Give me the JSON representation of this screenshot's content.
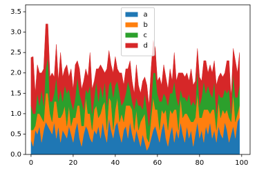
{
  "chart_data": {
    "type": "area",
    "stacked": true,
    "x": [
      0,
      1,
      2,
      3,
      4,
      5,
      6,
      7,
      8,
      9,
      10,
      11,
      12,
      13,
      14,
      15,
      16,
      17,
      18,
      19,
      20,
      21,
      22,
      23,
      24,
      25,
      26,
      27,
      28,
      29,
      30,
      31,
      32,
      33,
      34,
      35,
      36,
      37,
      38,
      39,
      40,
      41,
      42,
      43,
      44,
      45,
      46,
      47,
      48,
      49,
      50,
      51,
      52,
      53,
      54,
      55,
      56,
      57,
      58,
      59,
      60,
      61,
      62,
      63,
      64,
      65,
      66,
      67,
      68,
      69,
      70,
      71,
      72,
      73,
      74,
      75,
      76,
      77,
      78,
      79,
      80,
      81,
      82,
      83,
      84,
      85,
      86,
      87,
      88,
      89,
      90,
      91,
      92,
      93,
      94,
      95,
      96,
      97,
      98,
      99
    ],
    "series": [
      {
        "name": "a",
        "color": "#1f77b4",
        "values": [
          0.35,
          0.2,
          0.6,
          0.5,
          0.7,
          0.3,
          0.6,
          0.8,
          0.7,
          0.6,
          0.5,
          0.8,
          0.4,
          0.7,
          0.3,
          0.6,
          0.5,
          0.4,
          0.7,
          0.5,
          0.3,
          0.6,
          0.8,
          0.4,
          0.2,
          0.5,
          0.7,
          0.6,
          0.4,
          0.3,
          0.6,
          0.5,
          0.7,
          0.4,
          0.8,
          0.5,
          0.3,
          0.9,
          0.6,
          0.4,
          0.7,
          0.8,
          0.5,
          0.3,
          0.6,
          0.7,
          0.4,
          0.8,
          0.5,
          0.3,
          0.6,
          0.4,
          0.2,
          0.5,
          0.3,
          0.1,
          0.2,
          0.4,
          0.6,
          0.7,
          0.5,
          0.3,
          0.6,
          0.8,
          0.4,
          0.2,
          0.5,
          0.7,
          0.3,
          0.6,
          0.4,
          0.8,
          0.5,
          0.3,
          0.7,
          0.4,
          0.6,
          0.2,
          0.5,
          0.8,
          0.4,
          0.6,
          0.3,
          0.7,
          0.5,
          0.8,
          0.4,
          0.6,
          0.3,
          0.7,
          0.5,
          0.4,
          0.8,
          0.6,
          0.3,
          0.5,
          0.7,
          0.4,
          0.8,
          0.9
        ]
      },
      {
        "name": "b",
        "color": "#ff7f0e",
        "values": [
          0.25,
          0.4,
          0.1,
          0.5,
          0.3,
          0.6,
          0.2,
          0.7,
          0.8,
          0.4,
          0.3,
          0.5,
          0.9,
          0.2,
          0.6,
          0.4,
          0.7,
          0.3,
          0.5,
          0.2,
          0.6,
          0.3,
          0.4,
          0.8,
          0.5,
          0.2,
          0.7,
          0.4,
          0.6,
          0.3,
          0.5,
          0.7,
          0.2,
          0.6,
          0.4,
          0.8,
          0.3,
          0.5,
          0.7,
          0.2,
          0.4,
          0.6,
          0.3,
          0.7,
          0.2,
          0.5,
          0.8,
          0.4,
          0.6,
          0.3,
          0.5,
          0.2,
          0.6,
          0.4,
          0.7,
          0.3,
          0.1,
          0.5,
          0.8,
          0.4,
          0.6,
          0.3,
          0.5,
          0.2,
          0.7,
          0.4,
          0.6,
          0.3,
          0.8,
          0.5,
          0.2,
          0.6,
          0.4,
          0.7,
          0.3,
          0.5,
          0.2,
          0.6,
          0.4,
          0.7,
          0.5,
          0.3,
          0.8,
          0.4,
          0.6,
          0.2,
          0.7,
          0.5,
          0.3,
          0.6,
          0.4,
          0.7,
          0.2,
          0.5,
          0.6,
          0.3,
          0.8,
          0.4,
          0.2,
          0.3
        ]
      },
      {
        "name": "c",
        "color": "#2ca02c",
        "values": [
          0.6,
          0.4,
          0.3,
          0.5,
          0.2,
          0.7,
          0.4,
          0.6,
          0.9,
          0.3,
          0.5,
          0.2,
          0.6,
          0.4,
          0.7,
          0.3,
          0.5,
          0.8,
          0.4,
          0.6,
          0.2,
          0.5,
          0.7,
          0.3,
          0.6,
          0.4,
          0.2,
          0.5,
          0.7,
          0.4,
          0.3,
          0.6,
          0.4,
          0.7,
          0.2,
          0.5,
          0.6,
          0.3,
          0.5,
          0.8,
          0.6,
          0.4,
          0.7,
          0.2,
          0.5,
          0.3,
          0.6,
          0.4,
          0.2,
          0.5,
          0.3,
          0.6,
          0.4,
          0.2,
          0.5,
          0.7,
          0.4,
          0.3,
          0.6,
          0.9,
          0.4,
          0.7,
          0.2,
          0.5,
          0.3,
          0.6,
          0.4,
          0.5,
          0.7,
          0.3,
          0.6,
          0.2,
          0.5,
          0.4,
          0.3,
          0.6,
          0.4,
          0.5,
          0.3,
          0.6,
          0.3,
          0.5,
          0.7,
          0.4,
          0.6,
          0.5,
          0.3,
          0.7,
          0.4,
          0.2,
          0.5,
          0.3,
          0.6,
          0.4,
          0.7,
          0.2,
          0.5,
          0.6,
          0.4,
          0.5
        ]
      },
      {
        "name": "d",
        "color": "#d62728",
        "values": [
          1.18,
          1.4,
          0.5,
          0.7,
          0.8,
          0.4,
          0.9,
          1.1,
          0.8,
          0.6,
          0.7,
          0.4,
          0.8,
          0.5,
          0.9,
          0.6,
          0.4,
          0.7,
          0.3,
          0.8,
          0.5,
          0.8,
          0.4,
          0.6,
          0.3,
          0.7,
          0.5,
          0.4,
          0.8,
          0.6,
          0.4,
          0.3,
          0.8,
          0.5,
          0.7,
          0.2,
          0.9,
          0.85,
          0.4,
          0.6,
          0.7,
          0.3,
          0.5,
          0.8,
          0.4,
          0.6,
          0.3,
          0.7,
          0.5,
          0.4,
          0.8,
          0.5,
          0.3,
          0.7,
          0.4,
          0.6,
          0.5,
          0.9,
          0.8,
          0.6,
          0.3,
          0.6,
          0.4,
          0.7,
          0.5,
          0.4,
          0.6,
          0.3,
          0.7,
          0.4,
          0.8,
          0.4,
          0.6,
          0.5,
          0.7,
          0.3,
          0.9,
          0.4,
          0.6,
          0.5,
          0.7,
          0.4,
          0.5,
          0.8,
          0.3,
          0.7,
          0.6,
          0.5,
          0.7,
          0.4,
          0.6,
          0.5,
          0.4,
          0.8,
          0.7,
          0.4,
          0.6,
          0.9,
          0.6,
          0.8
        ]
      }
    ],
    "xlim": [
      -2.6,
      104
    ],
    "ylim": [
      0,
      3.67
    ],
    "xticks": [
      0,
      20,
      40,
      60,
      80,
      100
    ],
    "yticks": [
      {
        "value": 0,
        "label": "0.0"
      },
      0.5,
      {
        "value": 1,
        "label": "1.0"
      },
      1.5,
      {
        "value": 2,
        "label": "2.0"
      },
      2.5,
      {
        "value": 3,
        "label": "3.0"
      },
      3.5
    ],
    "legend": "upper center"
  }
}
